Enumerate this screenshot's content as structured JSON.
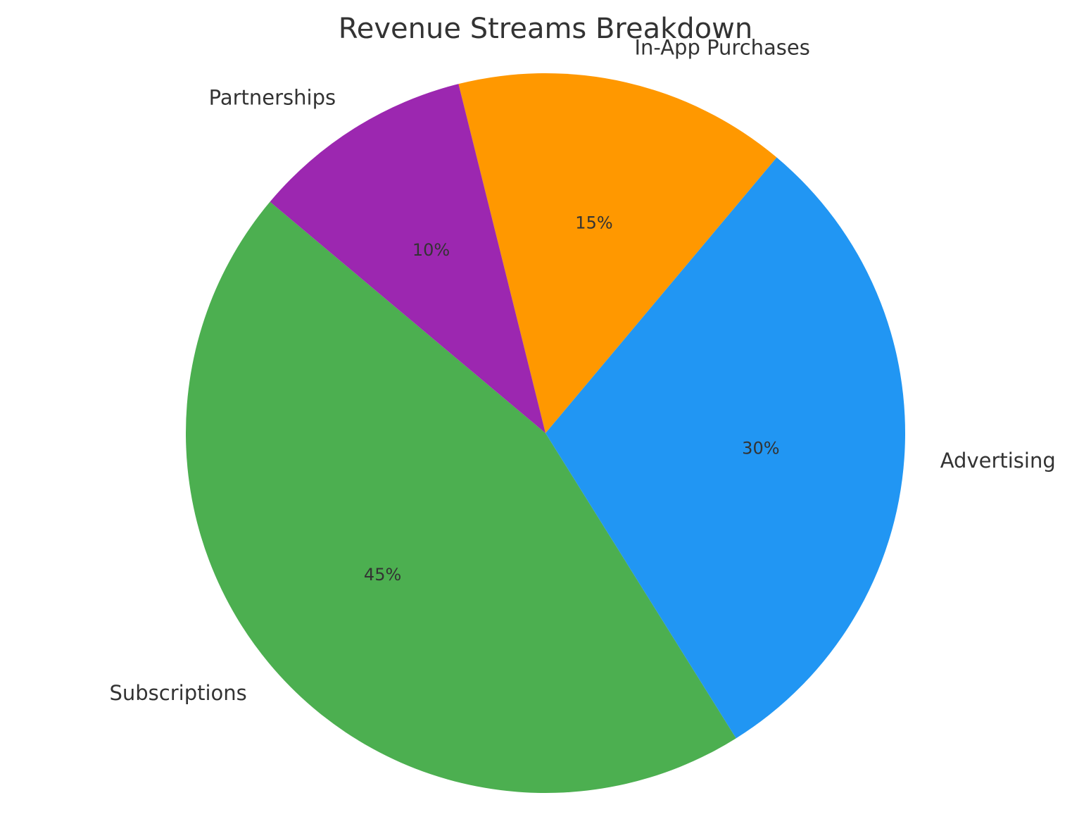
{
  "chart_data": {
    "type": "pie",
    "title": "Revenue Streams Breakdown",
    "start_angle_deg": 140,
    "direction": "counterclockwise",
    "slices": [
      {
        "label": "Subscriptions",
        "value": 45,
        "pct_label": "45%",
        "color": "#4CAF50"
      },
      {
        "label": "Advertising",
        "value": 30,
        "pct_label": "30%",
        "color": "#2196F3"
      },
      {
        "label": "In-App Purchases",
        "value": 15,
        "pct_label": "15%",
        "color": "#FF9800"
      },
      {
        "label": "Partnerships",
        "value": 10,
        "pct_label": "10%",
        "color": "#9C27B0"
      }
    ]
  }
}
